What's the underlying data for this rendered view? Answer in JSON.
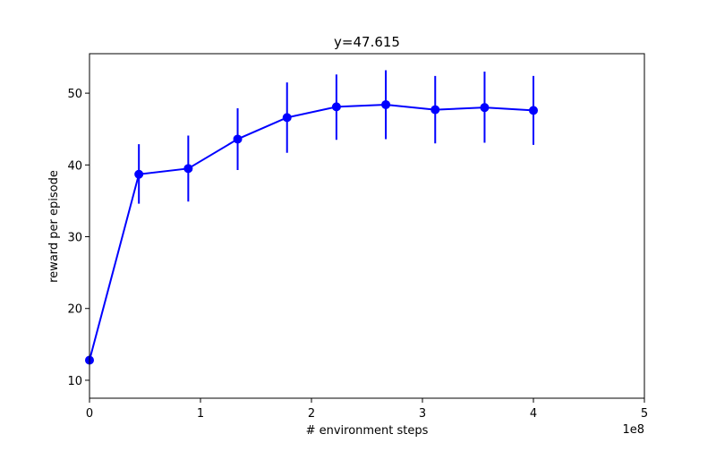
{
  "chart_data": {
    "type": "line",
    "title": "y=47.615",
    "xlabel": "# environment steps",
    "ylabel": "reward per episode",
    "x_offset_text": "1e8",
    "xlim": [
      0,
      5
    ],
    "ylim": [
      7.5,
      55.5
    ],
    "xticks": [
      0,
      1,
      2,
      3,
      4,
      5
    ],
    "yticks": [
      10,
      20,
      30,
      40,
      50
    ],
    "x_tick_labels": [
      "0",
      "1",
      "2",
      "3",
      "4",
      "5"
    ],
    "y_tick_labels": [
      "10",
      "20",
      "30",
      "40",
      "50"
    ],
    "grid": false,
    "series": [
      {
        "color": "#0000ff",
        "marker": "circle",
        "x": [
          0.0,
          0.445,
          0.89,
          1.335,
          1.78,
          2.225,
          2.67,
          3.115,
          3.56,
          4.0
        ],
        "y": [
          12.8,
          38.7,
          39.5,
          43.6,
          46.6,
          48.1,
          48.4,
          47.7,
          48.0,
          47.6
        ],
        "err_low": [
          null,
          34.6,
          34.9,
          39.3,
          41.7,
          43.5,
          43.6,
          43.0,
          43.1,
          42.8
        ],
        "err_high": [
          null,
          42.9,
          44.1,
          47.9,
          51.5,
          52.6,
          53.2,
          52.4,
          53.0,
          52.4
        ]
      }
    ]
  }
}
